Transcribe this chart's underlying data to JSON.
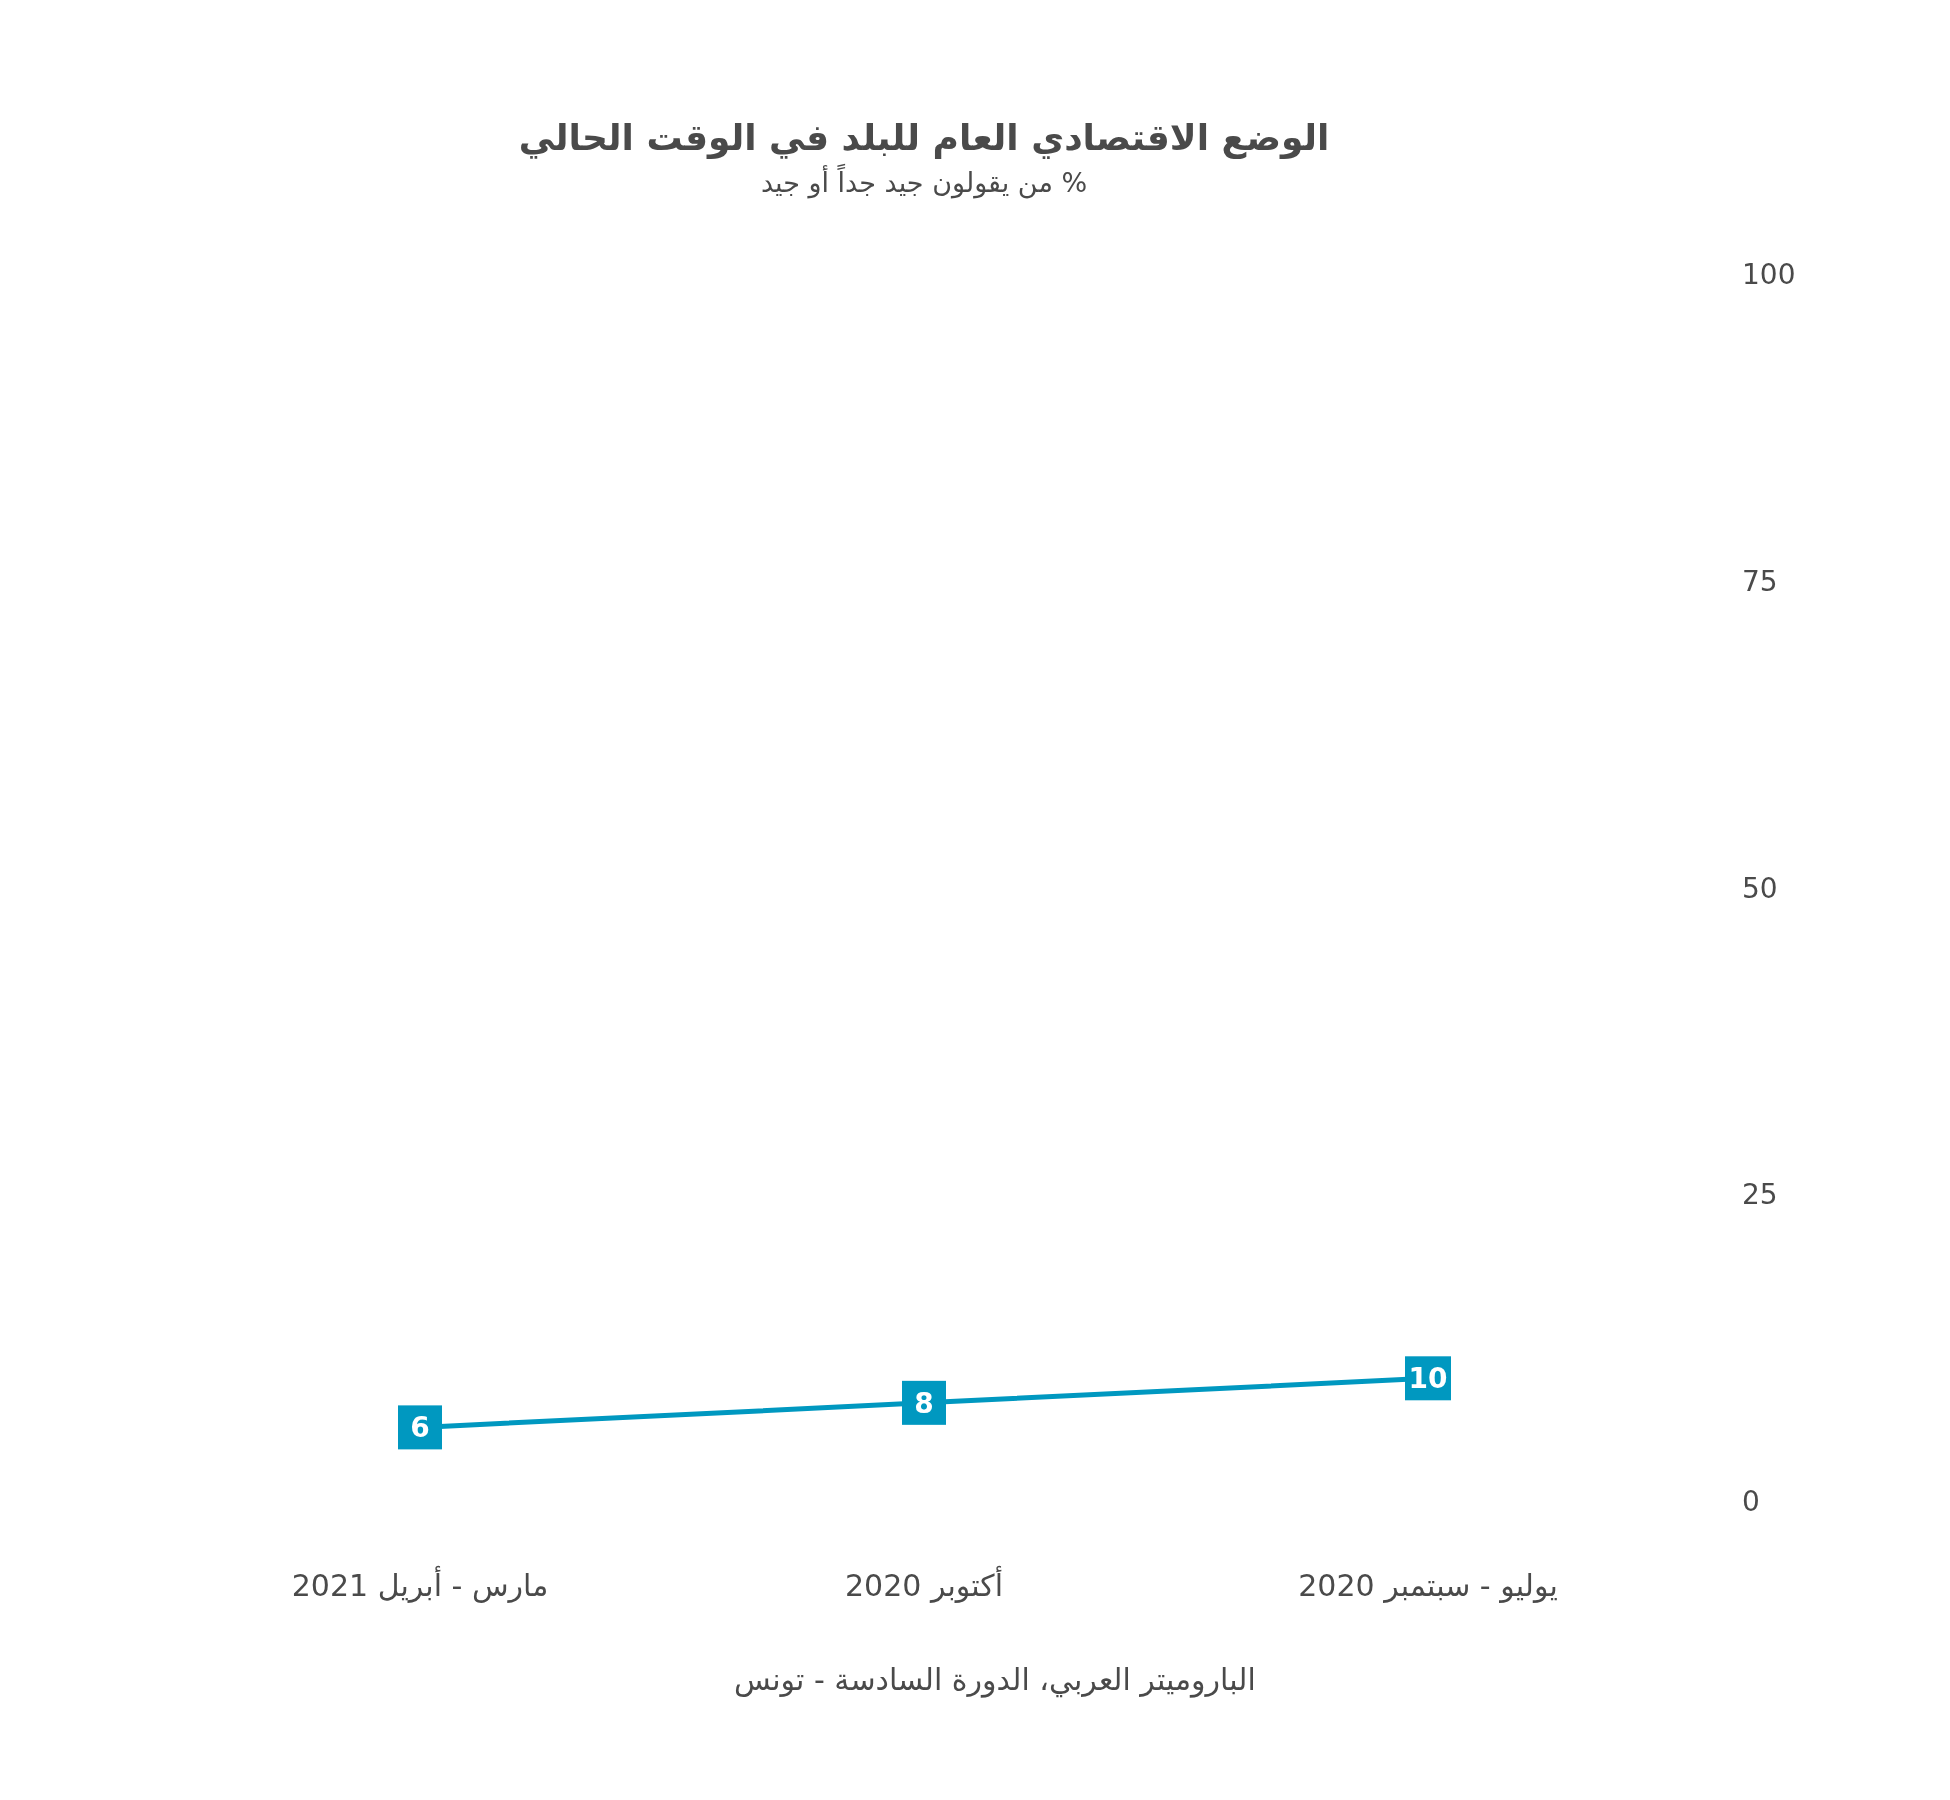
{
  "chart_data": {
    "type": "line",
    "title": "الوضع الاقتصادي العام للبلد في الوقت الحالي",
    "subtitle": "% من يقولون جيد جداً أو جيد",
    "categories": [
      "مارس - أبريل 2021",
      "أكتوبر 2020",
      "يوليو - سبتمبر 2020"
    ],
    "series": [
      {
        "color": "#0098c0",
        "values": [
          6,
          8,
          10
        ]
      }
    ],
    "ylim": [
      0,
      100
    ],
    "yticks": [
      0,
      25,
      50,
      75,
      100
    ],
    "grid": false,
    "marker": "square",
    "data_labels": true,
    "annotations": [
      "الباروميتر العربي، الدورة السادسة - تونس"
    ]
  }
}
